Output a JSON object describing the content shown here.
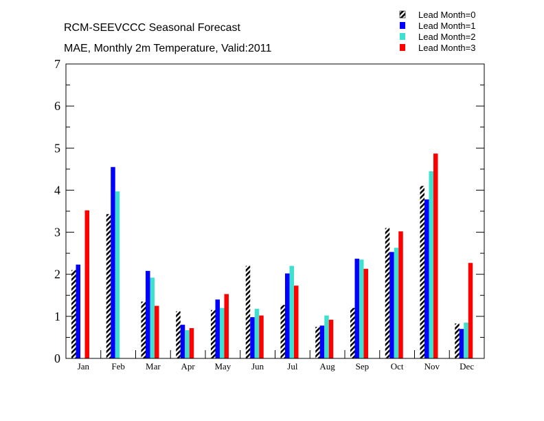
{
  "chart_data": {
    "type": "bar",
    "title": "RCM-SEEVCCC Seasonal Forecast",
    "subtitle": "MAE, Monthly 2m Temperature, Valid:2011",
    "xlabel": "",
    "ylabel": "",
    "ylim": [
      0,
      7
    ],
    "yticks": [
      "0",
      "1",
      "2",
      "3",
      "4",
      "5",
      "6",
      "7"
    ],
    "grid": false,
    "legend_position": "top-right",
    "categories": [
      "Jan",
      "Feb",
      "Mar",
      "Apr",
      "May",
      "Jun",
      "Jul",
      "Aug",
      "Sep",
      "Oct",
      "Nov",
      "Dec"
    ],
    "series": [
      {
        "name": "Lead Month=0",
        "color": "#000000",
        "pattern": "hatched",
        "values": [
          2.1,
          3.43,
          1.35,
          1.12,
          1.15,
          2.2,
          1.27,
          0.75,
          1.2,
          3.1,
          4.1,
          0.83
        ]
      },
      {
        "name": "Lead Month=1",
        "color": "#0000ff",
        "pattern": "solid",
        "values": [
          2.23,
          4.55,
          2.08,
          0.8,
          1.4,
          0.98,
          2.02,
          0.78,
          2.37,
          2.53,
          3.78,
          0.7
        ]
      },
      {
        "name": "Lead Month=2",
        "color": "#40e0d0",
        "pattern": "solid",
        "values": [
          null,
          3.97,
          1.92,
          0.67,
          1.2,
          1.18,
          2.2,
          1.02,
          2.35,
          2.63,
          4.45,
          0.85
        ]
      },
      {
        "name": "Lead Month=3",
        "color": "#ff0000",
        "pattern": "solid",
        "values": [
          3.52,
          null,
          1.25,
          0.72,
          1.53,
          1.02,
          1.73,
          0.92,
          2.13,
          3.02,
          4.87,
          2.27
        ]
      }
    ]
  }
}
